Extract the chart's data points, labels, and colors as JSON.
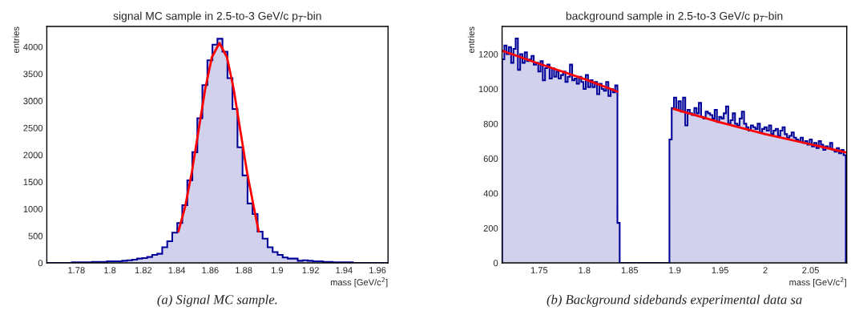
{
  "chart_data": [
    {
      "type": "histogram",
      "title": "signal MC sample in 2.5-to-3 GeV/c p$_{T}$-bin",
      "xlabel": "mass [GeV/c$^{2}$]",
      "ylabel": "entries",
      "color": "#000099",
      "bins": [
        1.7623,
        1.7653,
        1.7683,
        1.7713,
        1.7743,
        1.7773,
        1.7803,
        1.7833,
        1.7863,
        1.7893,
        1.7923,
        1.7953,
        1.7983,
        1.8013,
        1.8043,
        1.8073,
        1.8103,
        1.8133,
        1.8163,
        1.8193,
        1.8223,
        1.8253,
        1.8283,
        1.8313,
        1.8343,
        1.8373,
        1.8403,
        1.8433,
        1.8463,
        1.8493,
        1.8523,
        1.8553,
        1.8583,
        1.8613,
        1.8643,
        1.8673,
        1.8703,
        1.8733,
        1.8763,
        1.8793,
        1.8823,
        1.8853,
        1.8883,
        1.8913,
        1.8943,
        1.8973,
        1.9003,
        1.9033,
        1.9063,
        1.9093,
        1.9123,
        1.9153,
        1.9183,
        1.9213,
        1.9243,
        1.9273,
        1.9303,
        1.9333,
        1.9363,
        1.9393,
        1.9423,
        1.9453,
        1.9483,
        1.9513,
        1.9543,
        1.9573,
        1.9603,
        1.9633,
        1.9663
      ],
      "values": [
        0,
        0,
        0,
        0,
        0,
        10,
        10,
        10,
        10,
        20,
        20,
        20,
        30,
        30,
        30,
        40,
        50,
        60,
        80,
        90,
        110,
        150,
        170,
        290,
        400,
        560,
        740,
        1070,
        1530,
        2050,
        2680,
        3290,
        3750,
        4040,
        4150,
        3910,
        3420,
        2850,
        2140,
        1620,
        1100,
        905,
        580,
        450,
        290,
        200,
        150,
        100,
        80,
        80,
        40,
        50,
        40,
        30,
        30,
        20,
        20,
        10,
        10,
        10,
        10,
        0,
        0,
        0,
        0,
        0,
        0,
        0
      ],
      "series": [
        {
          "type": "line",
          "color": "#ff0000",
          "x": [
            1.841,
            1.845,
            1.849,
            1.853,
            1.857,
            1.861,
            1.8655,
            1.87,
            1.874,
            1.878,
            1.882,
            1.886,
            1.889
          ],
          "values": [
            580,
            1040,
            1680,
            2450,
            3220,
            3810,
            4070,
            3810,
            3220,
            2450,
            1680,
            1040,
            580
          ]
        }
      ],
      "xlim": [
        1.7623,
        1.9663
      ],
      "ylim": [
        0,
        4377
      ],
      "xticks": [
        1.78,
        1.8,
        1.82,
        1.84,
        1.86,
        1.88,
        1.9,
        1.92,
        1.94,
        1.96
      ],
      "yticks": [
        0,
        500,
        1000,
        1500,
        2000,
        2500,
        3000,
        3500,
        4000
      ],
      "grid": false,
      "legend": false,
      "annotations": [
        "(a) Signal MC sample."
      ]
    },
    {
      "type": "histogram",
      "title": "background sample in 2.5-to-3 GeV/c p$_{T}$-bin",
      "xlabel": "mass [GeV/c$^{2}$]",
      "ylabel": "entries",
      "color": "#000099",
      "bins": [
        1.709,
        1.7115,
        1.714,
        1.7165,
        1.719,
        1.7215,
        1.724,
        1.7265,
        1.729,
        1.7315,
        1.734,
        1.7365,
        1.739,
        1.7415,
        1.744,
        1.7465,
        1.749,
        1.7515,
        1.754,
        1.7565,
        1.759,
        1.7615,
        1.764,
        1.7665,
        1.769,
        1.7715,
        1.774,
        1.7765,
        1.779,
        1.7815,
        1.784,
        1.7865,
        1.789,
        1.7915,
        1.794,
        1.7965,
        1.799,
        1.8015,
        1.804,
        1.8065,
        1.809,
        1.8115,
        1.814,
        1.8165,
        1.819,
        1.8215,
        1.824,
        1.8265,
        1.829,
        1.8315,
        1.834,
        1.8365,
        1.839,
        1.8415,
        1.844,
        1.8465,
        1.849,
        1.8515,
        1.854,
        1.8565,
        1.859,
        1.8615,
        1.864,
        1.8665,
        1.869,
        1.8715,
        1.874,
        1.8765,
        1.879,
        1.8815,
        1.884,
        1.8865,
        1.889,
        1.8915,
        1.894,
        1.8965,
        1.899,
        1.9015,
        1.904,
        1.9065,
        1.909,
        1.9115,
        1.914,
        1.9165,
        1.919,
        1.9215,
        1.924,
        1.9265,
        1.929,
        1.9315,
        1.934,
        1.9365,
        1.939,
        1.9415,
        1.944,
        1.9465,
        1.949,
        1.9515,
        1.954,
        1.9565,
        1.959,
        1.9615,
        1.964,
        1.9665,
        1.969,
        1.9715,
        1.974,
        1.9765,
        1.979,
        1.9815,
        1.984,
        1.9865,
        1.989,
        1.9915,
        1.994,
        1.9965,
        1.999,
        2.0015,
        2.004,
        2.0065,
        2.009,
        2.0115,
        2.014,
        2.0165,
        2.019,
        2.0215,
        2.024,
        2.0265,
        2.029,
        2.0315,
        2.034,
        2.0365,
        2.039,
        2.0415,
        2.044,
        2.0465,
        2.049,
        2.0515,
        2.054,
        2.0565,
        2.059,
        2.0615,
        2.064,
        2.0665,
        2.069,
        2.0715,
        2.074,
        2.0765,
        2.079,
        2.0815,
        2.084,
        2.0865,
        2.089
      ],
      "values": [
        1170,
        1250,
        1200,
        1240,
        1150,
        1230,
        1290,
        1110,
        1200,
        1150,
        1210,
        1160,
        1170,
        1190,
        1140,
        1150,
        1100,
        1160,
        1050,
        1120,
        1140,
        1060,
        1120,
        1070,
        1100,
        1060,
        1080,
        1100,
        1040,
        1070,
        1140,
        1050,
        1060,
        1030,
        1070,
        1040,
        1000,
        1080,
        1010,
        1050,
        1010,
        1040,
        970,
        1030,
        1000,
        990,
        1040,
        960,
        1000,
        980,
        1020,
        230,
        0,
        0,
        0,
        0,
        0,
        0,
        0,
        0,
        0,
        0,
        0,
        0,
        0,
        0,
        0,
        0,
        0,
        0,
        0,
        0,
        0,
        0,
        710,
        890,
        950,
        880,
        930,
        870,
        950,
        790,
        880,
        860,
        850,
        890,
        860,
        920,
        840,
        830,
        870,
        860,
        850,
        830,
        880,
        810,
        840,
        830,
        860,
        900,
        800,
        820,
        860,
        800,
        790,
        830,
        870,
        800,
        780,
        760,
        790,
        780,
        770,
        800,
        750,
        770,
        780,
        760,
        790,
        740,
        760,
        770,
        730,
        760,
        780,
        740,
        720,
        730,
        750,
        720,
        710,
        700,
        720,
        690,
        700,
        680,
        710,
        670,
        690,
        660,
        700,
        680,
        650,
        670,
        660,
        690,
        650,
        640,
        660,
        630,
        650,
        620
      ],
      "series": [
        {
          "type": "line",
          "color": "#ff0000",
          "x": [
            1.709,
            1.75,
            1.8,
            1.8365,
            1.87,
            1.8985,
            1.95,
            2.0,
            2.05,
            2.089
          ],
          "values": [
            1220,
            1145,
            1057,
            985,
            null,
            885,
            808,
            740,
            682,
            635
          ]
        }
      ],
      "xlim": [
        1.709,
        2.09
      ],
      "ylim": [
        0,
        1359
      ],
      "xticks": [
        1.75,
        1.8,
        1.85,
        1.9,
        1.95,
        2,
        2.05
      ],
      "yticks": [
        0,
        200,
        400,
        600,
        800,
        1000,
        1200
      ],
      "grid": false,
      "legend": false,
      "annotations": [
        "(b) Background sidebands experimental data sa"
      ]
    }
  ]
}
